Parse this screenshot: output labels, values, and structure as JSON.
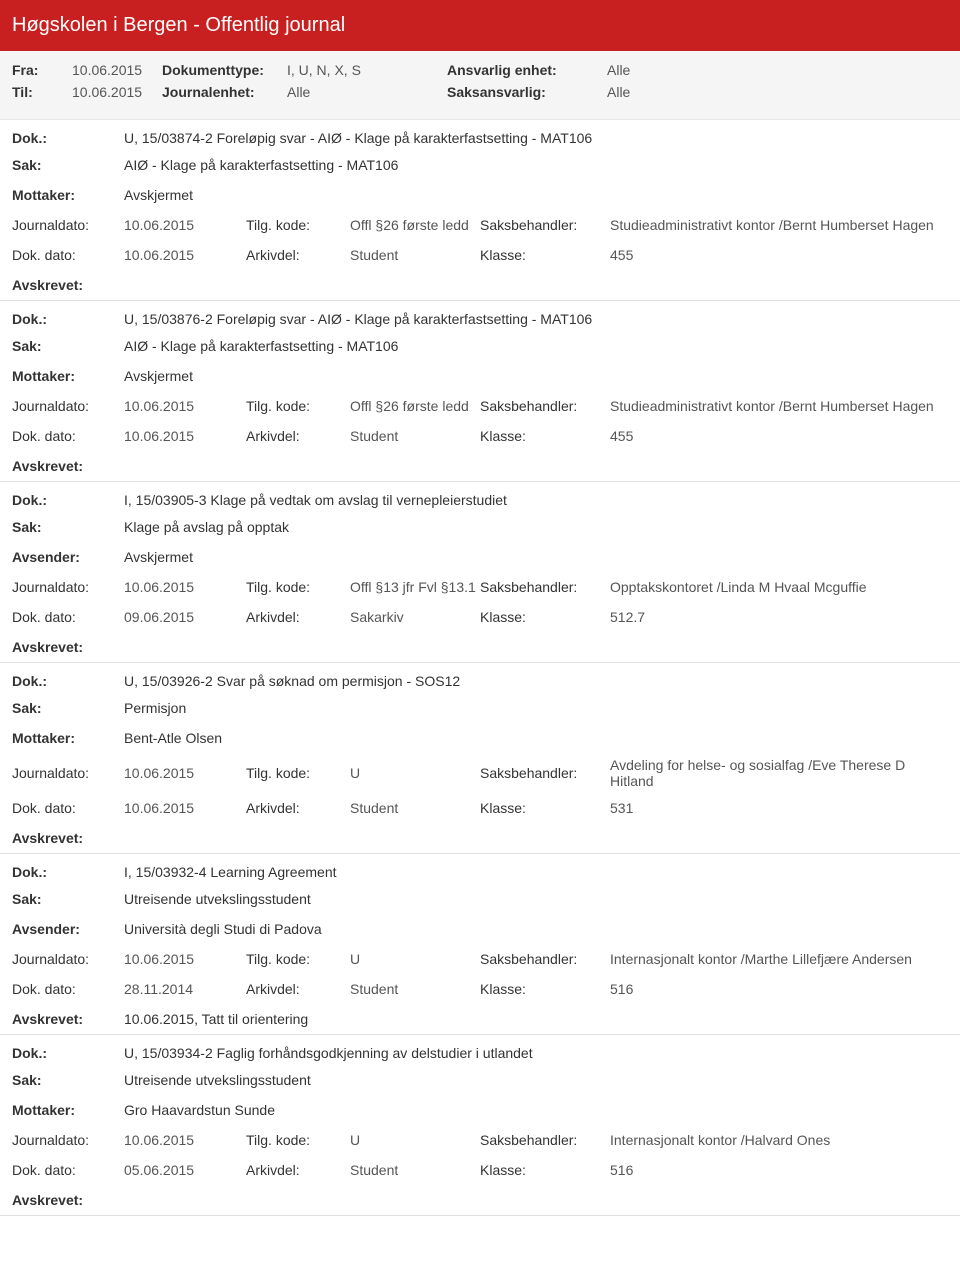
{
  "header": {
    "title": "Høgskolen i Bergen - Offentlig journal"
  },
  "filters": {
    "fra_label": "Fra:",
    "fra": "10.06.2015",
    "til_label": "Til:",
    "til": "10.06.2015",
    "doktype_label": "Dokumenttype:",
    "doktype": "I, U, N, X, S",
    "journalenhet_label": "Journalenhet:",
    "journalenhet": "Alle",
    "ansvarlig_label": "Ansvarlig enhet:",
    "ansvarlig": "Alle",
    "saksansvarlig_label": "Saksansvarlig:",
    "saksansvarlig": "Alle"
  },
  "labels": {
    "dok": "Dok.:",
    "sak": "Sak:",
    "mottaker": "Mottaker:",
    "avsender": "Avsender:",
    "journaldato": "Journaldato:",
    "dokdato": "Dok. dato:",
    "tilgkode": "Tilg. kode:",
    "arkivdel": "Arkivdel:",
    "saksbehandler": "Saksbehandler:",
    "klasse": "Klasse:",
    "avskrevet": "Avskrevet:"
  },
  "entries": [
    {
      "dok": "U, 15/03874-2 Foreløpig svar - AIØ - Klage på karakterfastsetting - MAT106",
      "sak": "AIØ - Klage på karakterfastsetting - MAT106",
      "party_label": "Mottaker:",
      "party": "Avskjermet",
      "journaldato": "10.06.2015",
      "tilgkode": "Offl §26 første ledd",
      "saksbehandler": "Studieadministrativt kontor /Bernt Humberset Hagen",
      "dokdato": "10.06.2015",
      "arkivdel": "Student",
      "klasse": "455",
      "avskrevet": ""
    },
    {
      "dok": "U, 15/03876-2 Foreløpig svar - AIØ - Klage på karakterfastsetting - MAT106",
      "sak": "AIØ - Klage på karakterfastsetting - MAT106",
      "party_label": "Mottaker:",
      "party": "Avskjermet",
      "journaldato": "10.06.2015",
      "tilgkode": "Offl §26 første ledd",
      "saksbehandler": "Studieadministrativt kontor /Bernt Humberset Hagen",
      "dokdato": "10.06.2015",
      "arkivdel": "Student",
      "klasse": "455",
      "avskrevet": ""
    },
    {
      "dok": "I, 15/03905-3 Klage på vedtak om avslag til vernepleierstudiet",
      "sak": "Klage på avslag på opptak",
      "party_label": "Avsender:",
      "party": "Avskjermet",
      "journaldato": "10.06.2015",
      "tilgkode": "Offl §13 jfr Fvl §13.1",
      "saksbehandler": "Opptakskontoret /Linda M Hvaal Mcguffie",
      "dokdato": "09.06.2015",
      "arkivdel": "Sakarkiv",
      "klasse": "512.7",
      "avskrevet": ""
    },
    {
      "dok": "U, 15/03926-2 Svar på søknad om permisjon - SOS12",
      "sak": "Permisjon",
      "party_label": "Mottaker:",
      "party": "Bent-Atle Olsen",
      "journaldato": "10.06.2015",
      "tilgkode": "U",
      "saksbehandler": "Avdeling for helse- og sosialfag /Eve Therese D Hitland",
      "dokdato": "10.06.2015",
      "arkivdel": "Student",
      "klasse": "531",
      "avskrevet": ""
    },
    {
      "dok": "I, 15/03932-4 Learning Agreement",
      "sak": "Utreisende utvekslingsstudent",
      "party_label": "Avsender:",
      "party": "Università degli Studi di Padova",
      "journaldato": "10.06.2015",
      "tilgkode": "U",
      "saksbehandler": "Internasjonalt kontor /Marthe Lillefjære Andersen",
      "dokdato": "28.11.2014",
      "arkivdel": "Student",
      "klasse": "516",
      "avskrevet": "10.06.2015, Tatt til orientering"
    },
    {
      "dok": "U, 15/03934-2 Faglig forhåndsgodkjenning av delstudier i utlandet",
      "sak": "Utreisende utvekslingsstudent",
      "party_label": "Mottaker:",
      "party": "Gro Haavardstun Sunde",
      "journaldato": "10.06.2015",
      "tilgkode": "U",
      "saksbehandler": "Internasjonalt kontor /Halvard Ones",
      "dokdato": "05.06.2015",
      "arkivdel": "Student",
      "klasse": "516",
      "avskrevet": ""
    }
  ]
}
